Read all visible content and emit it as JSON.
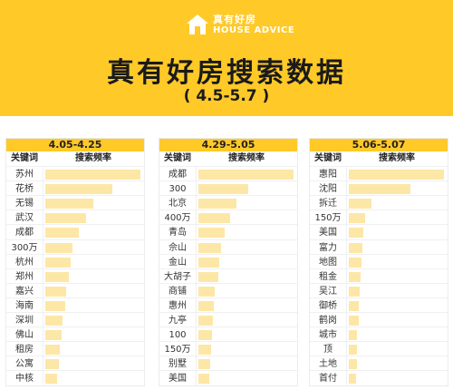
{
  "header": {
    "logo_cn": "真有好房",
    "logo_en": "HOUSE ADVICE",
    "title": "真有好房搜索数据",
    "subtitle": "( 4.5-5.7 )"
  },
  "colors": {
    "accent": "#ffc928",
    "bar": "#fde7a6"
  },
  "chart_data": [
    {
      "type": "bar",
      "title": "4.05-4.25",
      "col_keyword": "关键词",
      "col_freq": "搜索频率",
      "categories": [
        "苏州",
        "花桥",
        "无锡",
        "武汉",
        "成都",
        "300万",
        "杭州",
        "郑州",
        "嘉兴",
        "海南",
        "深圳",
        "佛山",
        "租房",
        "公寓",
        "中核"
      ],
      "values": [
        100,
        70,
        50,
        43,
        35,
        29,
        27,
        25,
        22,
        21,
        18,
        17,
        15,
        14,
        12
      ],
      "xlim": [
        0,
        100
      ]
    },
    {
      "type": "bar",
      "title": "4.29-5.05",
      "col_keyword": "关键词",
      "col_freq": "搜索频率",
      "categories": [
        "成都",
        "300",
        "北京",
        "400万",
        "青岛",
        "佘山",
        "金山",
        "大胡子",
        "商铺",
        "惠州",
        "九亭",
        "100",
        "150万",
        "别墅",
        "美国"
      ],
      "values": [
        100,
        52,
        40,
        33,
        28,
        24,
        22,
        21,
        17,
        16,
        15,
        14,
        13,
        12,
        11
      ],
      "xlim": [
        0,
        100
      ]
    },
    {
      "type": "bar",
      "title": "5.06-5.07",
      "col_keyword": "关键词",
      "col_freq": "搜索频率",
      "categories": [
        "惠阳",
        "沈阳",
        "拆迁",
        "150万",
        "美国",
        "富力",
        "地图",
        "租金",
        "吴江",
        "御桥",
        "鹤岗",
        "城市",
        "顶",
        "土地",
        "首付"
      ],
      "values": [
        100,
        65,
        24,
        17,
        15,
        14,
        13,
        12,
        11,
        10,
        10,
        9,
        9,
        9,
        8
      ],
      "xlim": [
        0,
        100
      ]
    }
  ]
}
